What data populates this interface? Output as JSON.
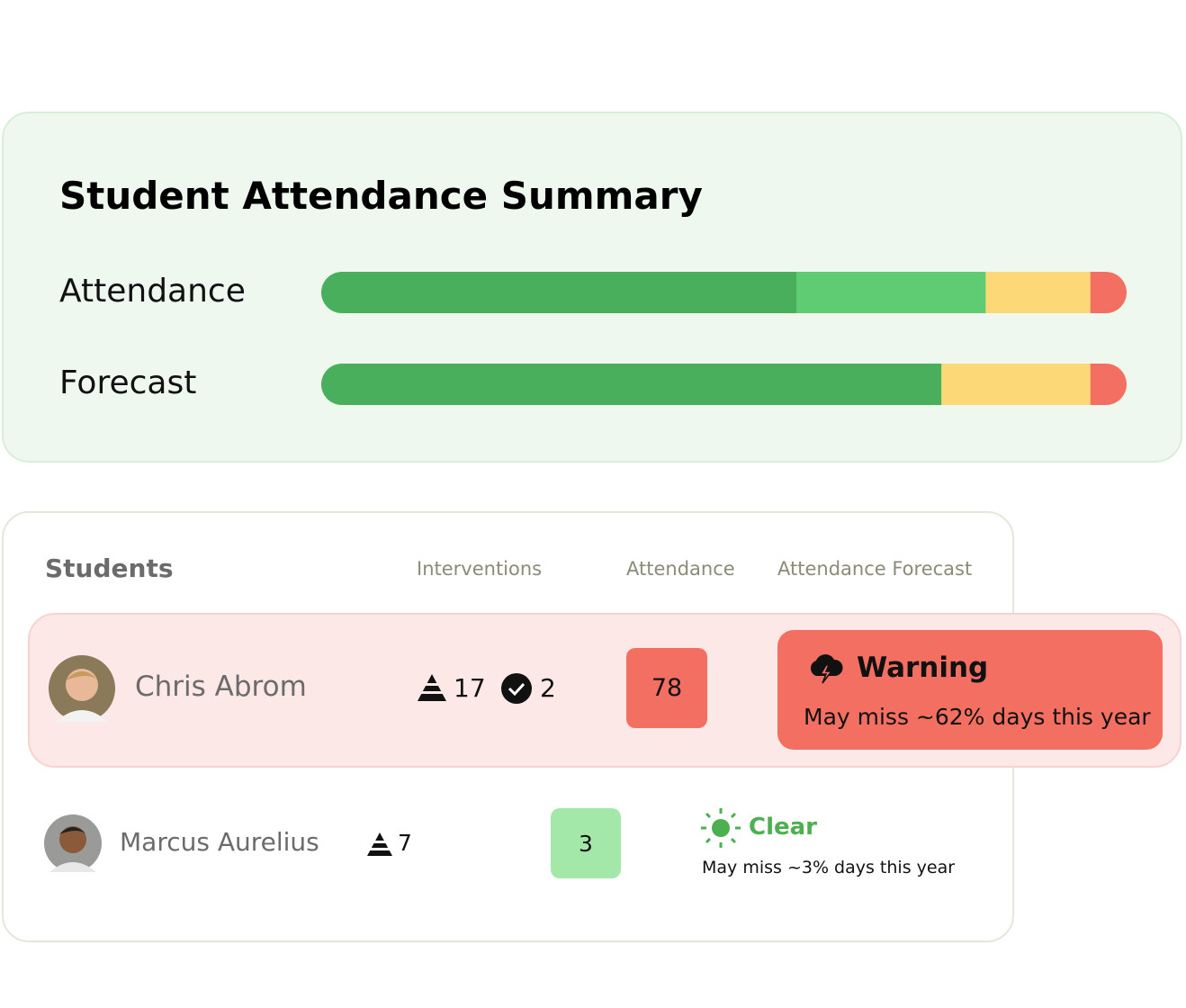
{
  "summary": {
    "title": "Student Attendance Summary",
    "xlim": [
      0,
      100
    ],
    "bars": [
      {
        "label": "Attendance",
        "segments": [
          {
            "value": 59,
            "color": "#4aaf5c"
          },
          {
            "value": 23.5,
            "color": "#5fcb72"
          },
          {
            "value": 13,
            "color": "#fdd877"
          },
          {
            "value": 4.5,
            "color": "#f36f62"
          }
        ]
      },
      {
        "label": "Forecast",
        "segments": [
          {
            "value": 77,
            "color": "#4aaf5c"
          },
          {
            "value": 18.5,
            "color": "#fdd877"
          },
          {
            "value": 4.5,
            "color": "#f36f62"
          }
        ]
      }
    ]
  },
  "table": {
    "headers": [
      "Students",
      "Interventions",
      "Attendance",
      "Attendance Forecast"
    ],
    "rows": [
      {
        "name": "Chris Abrom",
        "interventions": 17,
        "completed": 2,
        "attendance": 78,
        "forecast_status": "Warning",
        "forecast_text": "May miss ~62% days this year"
      },
      {
        "name": "Marcus Aurelius",
        "interventions": 7,
        "attendance": 3,
        "forecast_status": "Clear",
        "forecast_text": "May miss ~3% days this year"
      }
    ]
  }
}
